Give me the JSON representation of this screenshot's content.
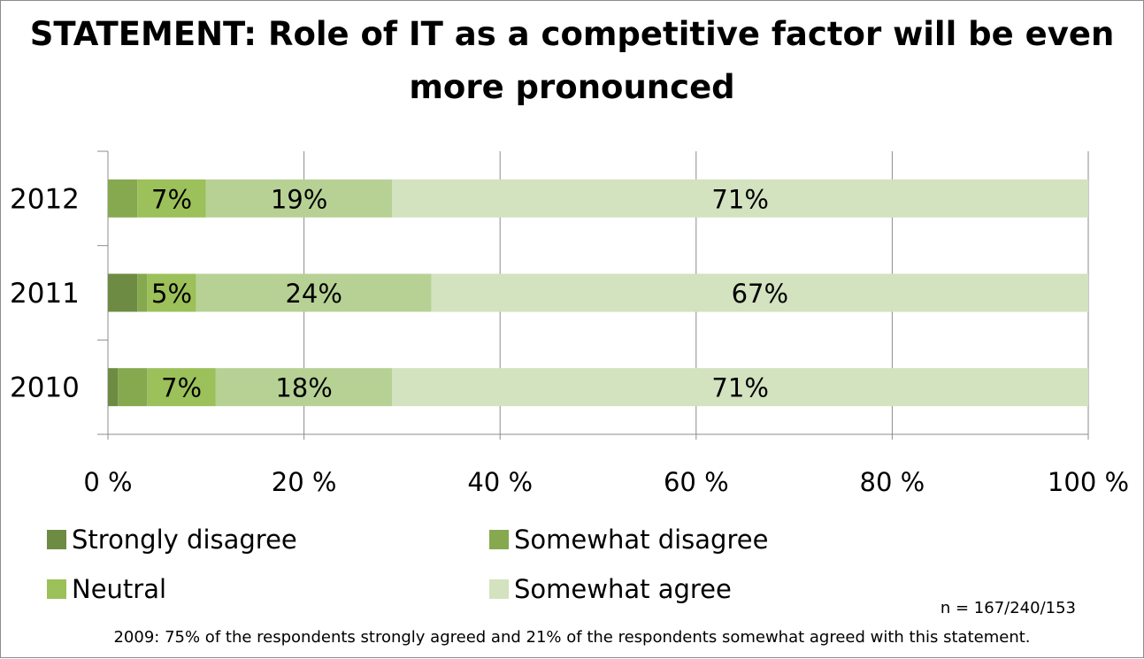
{
  "chart_data": {
    "type": "bar",
    "orientation": "horizontal",
    "stacked": true,
    "title": "STATEMENT: Role of IT as a competitive factor will be even more pronounced",
    "categories": [
      "2012",
      "2011",
      "2010"
    ],
    "series": [
      {
        "name": "Strongly disagree",
        "color": "#6e8b43",
        "values": [
          0,
          3,
          1
        ]
      },
      {
        "name": "Somewhat disagree",
        "color": "#86a94f",
        "values": [
          3,
          1,
          3
        ]
      },
      {
        "name": "Neutral",
        "color": "#9cc05a",
        "values": [
          7,
          5,
          7
        ]
      },
      {
        "name": "",
        "color": "#b7d195",
        "values": [
          19,
          24,
          18
        ]
      },
      {
        "name": "Somewhat agree",
        "color": "#d3e2bf",
        "values": [
          71,
          67,
          71
        ]
      }
    ],
    "data_labels": {
      "2012": [
        "",
        "",
        "7%",
        "19%",
        "71%"
      ],
      "2011": [
        "",
        "",
        "5%",
        "24%",
        "67%"
      ],
      "2010": [
        "",
        "",
        "7%",
        "18%",
        "71%"
      ]
    },
    "xlim": [
      0,
      100
    ],
    "x_ticks": [
      "0 %",
      "20 %",
      "40 %",
      "60 %",
      "80 %",
      "100 %"
    ],
    "grid": true,
    "legend_position": "bottom"
  },
  "sample_note": "n = 167/240/153",
  "footnote": "2009: 75% of the respondents strongly agreed and 21% of the respondents somewhat agreed with this statement."
}
